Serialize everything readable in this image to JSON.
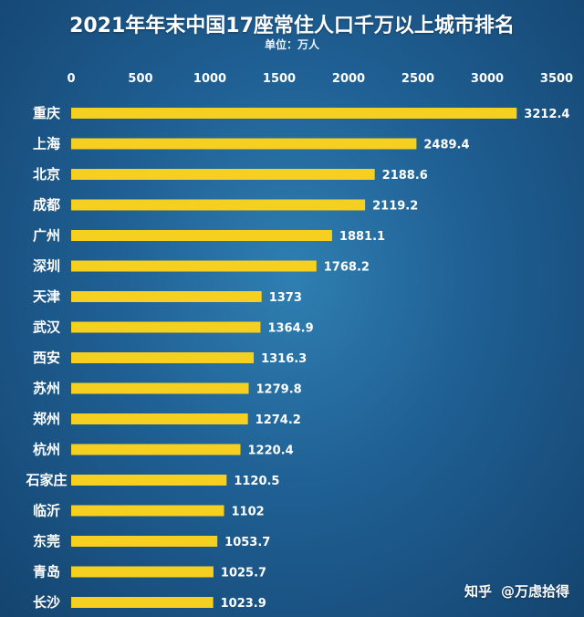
{
  "chart_data": {
    "type": "bar",
    "orientation": "horizontal",
    "title": "2021年年末中国17座常住人口千万以上城市排名",
    "subtitle": "单位：万人",
    "categories": [
      "重庆",
      "上海",
      "北京",
      "成都",
      "广州",
      "深圳",
      "天津",
      "武汉",
      "西安",
      "苏州",
      "郑州",
      "杭州",
      "石家庄",
      "临沂",
      "东莞",
      "青岛",
      "长沙"
    ],
    "values": [
      3212.4,
      2489.4,
      2188.6,
      2119.2,
      1881.1,
      1768.2,
      1373,
      1364.9,
      1316.3,
      1279.8,
      1274.2,
      1220.4,
      1120.5,
      1102,
      1053.7,
      1025.7,
      1023.9
    ],
    "value_labels": [
      "3212.4",
      "2489.4",
      "2188.6",
      "2119.2",
      "1881.1",
      "1768.2",
      "1373",
      "1364.9",
      "1316.3",
      "1279.8",
      "1274.2",
      "1220.4",
      "1120.5",
      "1102",
      "1053.7",
      "1025.7",
      "1023.9"
    ],
    "xlim": [
      0,
      3500
    ],
    "xticks": [
      "0",
      "500",
      "1000",
      "1500",
      "2000",
      "2500",
      "3000",
      "3500"
    ],
    "bar_color": "#f5d020",
    "axis_position": "top",
    "grid": false
  },
  "watermark": {
    "site": "知乎",
    "author": "@万虑拾得"
  }
}
